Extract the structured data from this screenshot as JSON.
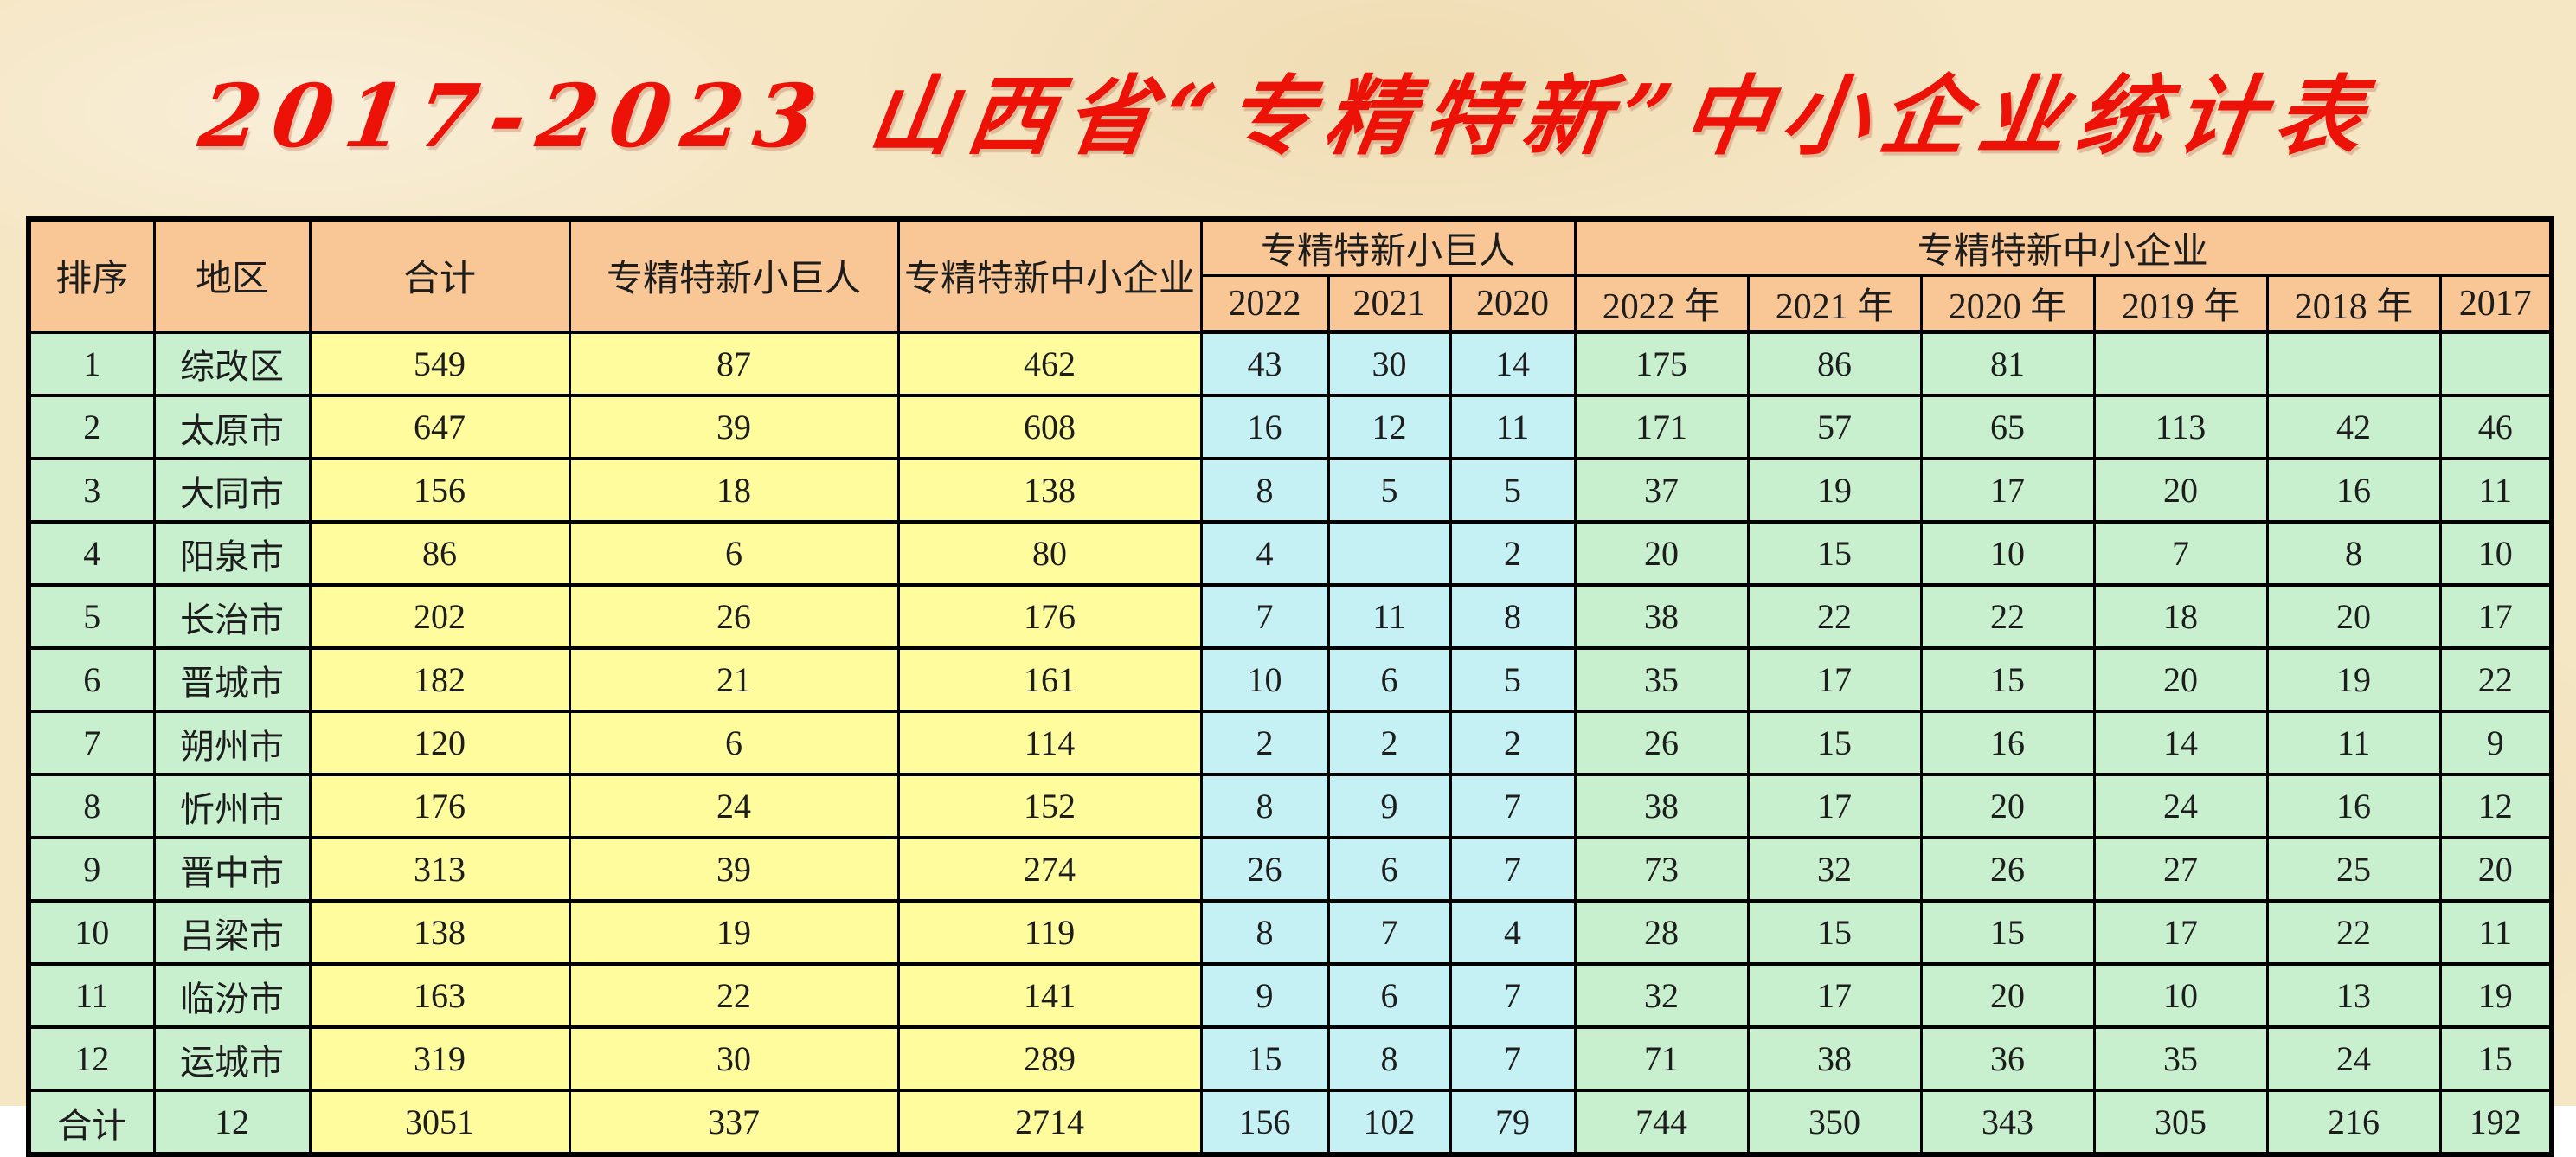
{
  "title": "2017-2023 山西省“专精特新”中小企业统计表",
  "colors": {
    "background_tan": "#F5E6C4",
    "header_orange": "#F9C795",
    "cell_green": "#C8F0CE",
    "cell_yellow": "#FEFC9D",
    "cell_blue": "#C5F1F4",
    "title_red": "#ED1207",
    "border_black": "#000000"
  },
  "table": {
    "headers": {
      "rank": "排序",
      "region": "地区",
      "total": "合计",
      "giant_total": "专精特新小巨人",
      "sme_total": "专精特新中小企业",
      "giant_group": "专精特新小巨人",
      "sme_group": "专精特新中小企业",
      "giant_years": [
        "2022",
        "2021",
        "2020"
      ],
      "sme_years": [
        "2022 年",
        "2021 年",
        "2020 年",
        "2019 年",
        "2018 年",
        "2017"
      ]
    },
    "column_keys": [
      "rank",
      "region",
      "total",
      "giant-total",
      "sme-total",
      "giant-2022",
      "giant-2021",
      "giant-2020",
      "sme-2022",
      "sme-2021",
      "sme-2020",
      "sme-2019",
      "sme-2018",
      "sme-2017"
    ],
    "rows": [
      [
        "1",
        "综改区",
        "549",
        "87",
        "462",
        "43",
        "30",
        "14",
        "175",
        "86",
        "81",
        "",
        "",
        ""
      ],
      [
        "2",
        "太原市",
        "647",
        "39",
        "608",
        "16",
        "12",
        "11",
        "171",
        "57",
        "65",
        "113",
        "42",
        "46"
      ],
      [
        "3",
        "大同市",
        "156",
        "18",
        "138",
        "8",
        "5",
        "5",
        "37",
        "19",
        "17",
        "20",
        "16",
        "11"
      ],
      [
        "4",
        "阳泉市",
        "86",
        "6",
        "80",
        "4",
        "",
        "2",
        "20",
        "15",
        "10",
        "7",
        "8",
        "10"
      ],
      [
        "5",
        "长治市",
        "202",
        "26",
        "176",
        "7",
        "11",
        "8",
        "38",
        "22",
        "22",
        "18",
        "20",
        "17"
      ],
      [
        "6",
        "晋城市",
        "182",
        "21",
        "161",
        "10",
        "6",
        "5",
        "35",
        "17",
        "15",
        "20",
        "19",
        "22"
      ],
      [
        "7",
        "朔州市",
        "120",
        "6",
        "114",
        "2",
        "2",
        "2",
        "26",
        "15",
        "16",
        "14",
        "11",
        "9"
      ],
      [
        "8",
        "忻州市",
        "176",
        "24",
        "152",
        "8",
        "9",
        "7",
        "38",
        "17",
        "20",
        "24",
        "16",
        "12"
      ],
      [
        "9",
        "晋中市",
        "313",
        "39",
        "274",
        "26",
        "6",
        "7",
        "73",
        "32",
        "26",
        "27",
        "25",
        "20"
      ],
      [
        "10",
        "吕梁市",
        "138",
        "19",
        "119",
        "8",
        "7",
        "4",
        "28",
        "15",
        "15",
        "17",
        "22",
        "11"
      ],
      [
        "11",
        "临汾市",
        "163",
        "22",
        "141",
        "9",
        "6",
        "7",
        "32",
        "17",
        "20",
        "10",
        "13",
        "19"
      ],
      [
        "12",
        "运城市",
        "319",
        "30",
        "289",
        "15",
        "8",
        "7",
        "71",
        "38",
        "36",
        "35",
        "24",
        "15"
      ],
      [
        "合计",
        "12",
        "3051",
        "337",
        "2714",
        "156",
        "102",
        "79",
        "744",
        "350",
        "343",
        "305",
        "216",
        "192"
      ]
    ]
  }
}
